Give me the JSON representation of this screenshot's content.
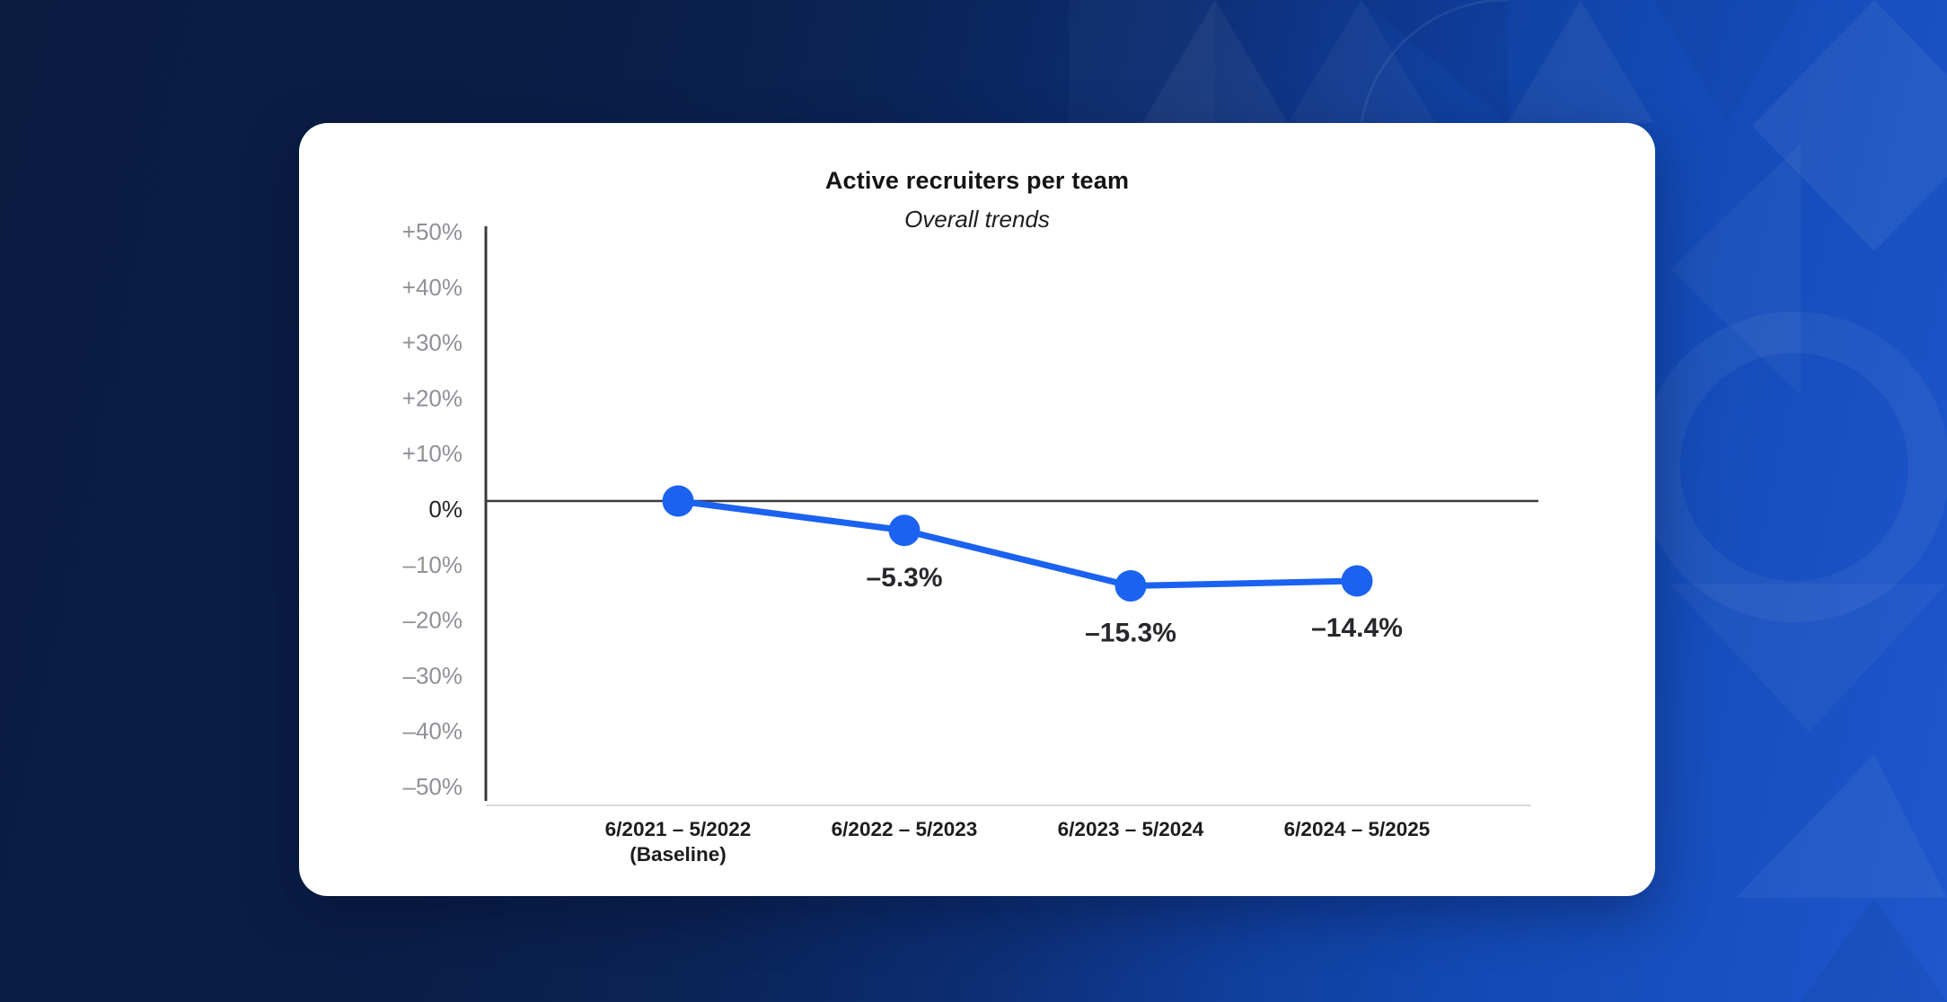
{
  "page": {
    "background": {
      "gradient_dark": "#0A1C40",
      "gradient_bright": "#1E58CC",
      "pattern": "subtle geometric triangles, diamonds and rings (top-right)"
    },
    "card_color": "#FFFFFF"
  },
  "chart_data": {
    "type": "line",
    "title": "Active recruiters per team",
    "subtitle": "Overall trends",
    "categories": [
      {
        "label": "6/2021 – 5/2022",
        "sublabel": "(Baseline)"
      },
      {
        "label": "6/2022 – 5/2023",
        "sublabel": ""
      },
      {
        "label": "6/2023 – 5/2024",
        "sublabel": ""
      },
      {
        "label": "6/2024 – 5/2025",
        "sublabel": ""
      }
    ],
    "values": [
      0,
      -5.3,
      -15.3,
      -14.4
    ],
    "point_labels": [
      "",
      "–5.3%",
      "–15.3%",
      "–14.4%"
    ],
    "unit": "%",
    "ylim": [
      -50,
      50
    ],
    "grid": false,
    "legend": null,
    "y_axis": {
      "ticks": [
        {
          "value": 50,
          "label": "+50%"
        },
        {
          "value": 40,
          "label": "+40%"
        },
        {
          "value": 30,
          "label": "+30%"
        },
        {
          "value": 20,
          "label": "+20%"
        },
        {
          "value": 10,
          "label": "+10%"
        },
        {
          "value": 0,
          "label": "0%"
        },
        {
          "value": -10,
          "label": "–10%"
        },
        {
          "value": -20,
          "label": "–20%"
        },
        {
          "value": -30,
          "label": "–30%"
        },
        {
          "value": -40,
          "label": "–40%"
        },
        {
          "value": -50,
          "label": "–50%"
        }
      ],
      "zero_line": true
    },
    "colors": {
      "line": "#1B62F0",
      "point": "#1B62F0",
      "axis": "#3B3B3E",
      "baseline_axis": "#D9DADD",
      "tick_label": "#8F9197",
      "zero_tick_label": "#242428",
      "value_label": "#28282C",
      "x_label": "#1C1C1F",
      "title": "#141414"
    }
  }
}
